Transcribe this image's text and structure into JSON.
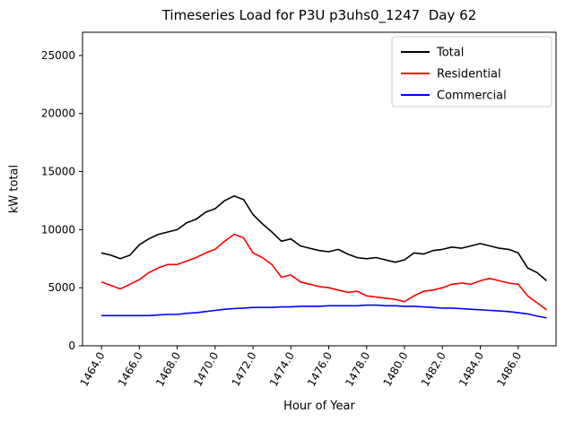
{
  "chart_data": {
    "type": "line",
    "title": "Timeseries Load for P3U p3uhs0_1247  Day 62",
    "xlabel": "Hour of Year",
    "ylabel": "kW total",
    "xlim": [
      1463.0,
      1488.0
    ],
    "ylim": [
      0,
      27000
    ],
    "grid": false,
    "legend_position": "upper right",
    "xticks": [
      1464,
      1466,
      1468,
      1470,
      1472,
      1474,
      1476,
      1478,
      1480,
      1482,
      1484,
      1486
    ],
    "xtick_labels": [
      "1464.0",
      "1466.0",
      "1468.0",
      "1470.0",
      "1472.0",
      "1474.0",
      "1476.0",
      "1478.0",
      "1480.0",
      "1482.0",
      "1484.0",
      "1486.0"
    ],
    "yticks": [
      0,
      5000,
      10000,
      15000,
      20000,
      25000
    ],
    "ytick_labels": [
      "0",
      "5000",
      "10000",
      "15000",
      "20000",
      "25000"
    ],
    "x": [
      1464.0,
      1464.5,
      1465.0,
      1465.5,
      1466.0,
      1466.5,
      1467.0,
      1467.5,
      1468.0,
      1468.5,
      1469.0,
      1469.5,
      1470.0,
      1470.5,
      1471.0,
      1471.5,
      1472.0,
      1472.5,
      1473.0,
      1473.5,
      1474.0,
      1474.5,
      1475.0,
      1475.5,
      1476.0,
      1476.5,
      1477.0,
      1477.5,
      1478.0,
      1478.5,
      1479.0,
      1479.5,
      1480.0,
      1480.5,
      1481.0,
      1481.5,
      1482.0,
      1482.5,
      1483.0,
      1483.5,
      1484.0,
      1484.5,
      1485.0,
      1485.5,
      1486.0,
      1486.5,
      1487.0,
      1487.5
    ],
    "series": [
      {
        "name": "Total",
        "color": "#000000",
        "values": [
          8000,
          7800,
          7500,
          7800,
          8700,
          9200,
          9600,
          9800,
          10000,
          10600,
          10900,
          11500,
          11800,
          12500,
          12900,
          12600,
          11300,
          10500,
          9800,
          9000,
          9200,
          8600,
          8400,
          8200,
          8100,
          8300,
          7900,
          7600,
          7500,
          7600,
          7400,
          7200,
          7400,
          8000,
          7900,
          8200,
          8300,
          8500,
          8400,
          8600,
          8800,
          8600,
          8400,
          8300,
          8000,
          6700,
          6300,
          5600
        ]
      },
      {
        "name": "Residential",
        "color": "#ff0000",
        "values": [
          5500,
          5200,
          4900,
          5300,
          5700,
          6300,
          6700,
          7000,
          7000,
          7300,
          7600,
          8000,
          8300,
          9000,
          9600,
          9300,
          8000,
          7600,
          7000,
          5900,
          6100,
          5500,
          5300,
          5100,
          5000,
          4800,
          4600,
          4700,
          4300,
          4200,
          4100,
          4000,
          3800,
          4300,
          4700,
          4800,
          5000,
          5300,
          5400,
          5300,
          5600,
          5800,
          5600,
          5400,
          5300,
          4300,
          3700,
          3100
        ]
      },
      {
        "name": "Commercial",
        "color": "#0000ff",
        "values": [
          2600,
          2600,
          2600,
          2600,
          2600,
          2600,
          2650,
          2700,
          2700,
          2800,
          2850,
          2950,
          3050,
          3150,
          3200,
          3250,
          3300,
          3300,
          3300,
          3350,
          3350,
          3400,
          3400,
          3400,
          3450,
          3450,
          3450,
          3450,
          3500,
          3500,
          3450,
          3450,
          3400,
          3400,
          3350,
          3300,
          3250,
          3250,
          3200,
          3150,
          3100,
          3050,
          3000,
          2950,
          2850,
          2750,
          2550,
          2400
        ]
      }
    ]
  }
}
